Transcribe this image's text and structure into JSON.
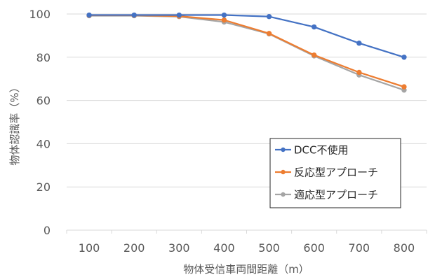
{
  "chart_data": {
    "type": "line",
    "title": "",
    "xlabel": "物体受信車両間距離（m）",
    "ylabel": "物体認識率（%）",
    "x": [
      100,
      200,
      300,
      400,
      500,
      600,
      700,
      800
    ],
    "x_tick_labels": [
      "100",
      "200",
      "300",
      "400",
      "500",
      "600",
      "700",
      "800"
    ],
    "ylim": [
      0,
      100
    ],
    "y_ticks": [
      0,
      20,
      40,
      60,
      80,
      100
    ],
    "y_tick_labels": [
      "0",
      "20",
      "40",
      "60",
      "80",
      "100"
    ],
    "grid": "horizontal",
    "legend_position": "bottom-right",
    "series": [
      {
        "name": "DCC不使用",
        "color": "#4472C4",
        "values": [
          99.5,
          99.5,
          99.5,
          99.5,
          98.8,
          94.0,
          86.5,
          80.0
        ]
      },
      {
        "name": "反応型アプローチ",
        "color": "#ED7D31",
        "values": [
          99.4,
          99.4,
          99.0,
          97.2,
          91.0,
          81.0,
          73.0,
          66.3
        ]
      },
      {
        "name": "適応型アプローチ",
        "color": "#A5A5A5",
        "values": [
          99.2,
          99.2,
          98.8,
          96.3,
          90.8,
          80.6,
          71.8,
          64.8
        ]
      }
    ]
  }
}
